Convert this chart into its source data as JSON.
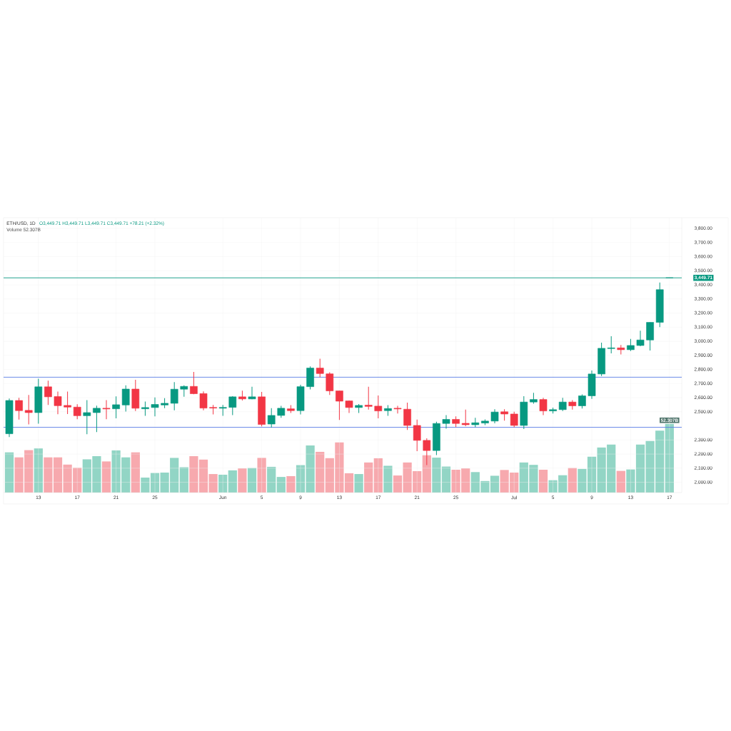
{
  "chart_data": [
    {
      "type": "bar",
      "categories": [
        null,
        null,
        null,
        null,
        null,
        null,
        null,
        null,
        null,
        null,
        null,
        null,
        null,
        null,
        null,
        null,
        null,
        null,
        null,
        null,
        null,
        null,
        null,
        null,
        null,
        null,
        null,
        null,
        null,
        null,
        null,
        null,
        null,
        null,
        null,
        null,
        null,
        null,
        null,
        null,
        null,
        null,
        null,
        null,
        null,
        null,
        null,
        null,
        null,
        null,
        null,
        null,
        null,
        null,
        null,
        null,
        null,
        null,
        null,
        null,
        null,
        null,
        null,
        null,
        null,
        null,
        null,
        null,
        null
      ],
      "values": [
        30.6,
        26.8,
        32.3,
        33.6,
        26.8,
        26.8,
        21.3,
        18.9,
        25.3,
        27.7,
        23.7,
        32.1,
        26.8,
        30.6,
        11.4,
        14.9,
        15.2,
        26.4,
        19.3,
        27.7,
        25.1,
        14.1,
        13.6,
        16.9,
        18.4,
        18.7,
        26.4,
        19.6,
        11.9,
        12.5,
        20.9,
        35.8,
        31.0,
        26.2,
        38.2,
        14.7,
        14.1,
        22.9,
        26.1,
        20.4,
        13.0,
        22.9,
        16.3,
        28.4,
        26.6,
        19.8,
        17.4,
        18.4,
        15.6,
        8.8,
        12.8,
        17.2,
        15.2,
        22.9,
        21.1,
        17.4,
        9.4,
        13.2,
        18.7,
        18.0,
        27.3,
        34.3,
        36.5,
        16.5,
        17.6,
        36.5,
        39.3,
        47.2,
        52.307
      ],
      "colors": [
        "#92d5c5",
        "#f7a9ae",
        "#f7a9ae",
        "#92d5c5",
        "#f7a9ae",
        "#f7a9ae",
        "#f7a9ae",
        "#f7a9ae",
        "#92d5c5",
        "#92d5c5",
        "#f7a9ae",
        "#92d5c5",
        "#92d5c5",
        "#f7a9ae",
        "#92d5c5",
        "#92d5c5",
        "#92d5c5",
        "#92d5c5",
        "#92d5c5",
        "#f7a9ae",
        "#f7a9ae",
        "#f7a9ae",
        "#92d5c5",
        "#92d5c5",
        "#f7a9ae",
        "#92d5c5",
        "#f7a9ae",
        "#92d5c5",
        "#92d5c5",
        "#f7a9ae",
        "#92d5c5",
        "#92d5c5",
        "#f7a9ae",
        "#f7a9ae",
        "#f7a9ae",
        "#f7a9ae",
        "#92d5c5",
        "#f7a9ae",
        "#f7a9ae",
        "#92d5c5",
        "#f7a9ae",
        "#f7a9ae",
        "#f7a9ae",
        "#f7a9ae",
        "#92d5c5",
        "#92d5c5",
        "#f7a9ae",
        "#f7a9ae",
        "#92d5c5",
        "#92d5c5",
        "#92d5c5",
        "#f7a9ae",
        "#f7a9ae",
        "#92d5c5",
        "#92d5c5",
        "#f7a9ae",
        "#92d5c5",
        "#92d5c5",
        "#f7a9ae",
        "#92d5c5",
        "#92d5c5",
        "#92d5c5",
        "#92d5c5",
        "#f7a9ae",
        "#92d5c5",
        "#92d5c5",
        "#92d5c5",
        "#92d5c5",
        "#92d5c5"
      ],
      "value_labels": [
        null,
        null,
        null,
        null,
        null,
        null,
        null,
        null,
        null,
        null,
        null,
        null,
        null,
        null,
        null,
        null,
        null,
        null,
        null,
        null,
        null,
        null,
        null,
        null,
        null,
        null,
        null,
        null,
        null,
        null,
        null,
        null,
        null,
        null,
        null,
        null,
        null,
        null,
        null,
        null,
        null,
        null,
        null,
        null,
        null,
        null,
        null,
        null,
        null,
        null,
        null,
        null,
        null,
        null,
        null,
        null,
        null,
        null,
        null,
        null,
        null,
        null,
        null,
        null,
        null,
        null,
        null,
        null,
        "52.307B"
      ]
    },
    {
      "type": "candlestick",
      "title": "ETH/USD, 1D",
      "subtitle": "O3,449.71 H3,449.71 L3,449.71 C3,449.71 +78.21 (+2.32%)",
      "annotations": [
        "Volume 52.307B"
      ],
      "categories": [
        null,
        null,
        null,
        "13",
        null,
        null,
        null,
        "17",
        null,
        null,
        null,
        "21",
        null,
        null,
        null,
        "25",
        null,
        null,
        null,
        null,
        null,
        null,
        "Jun",
        null,
        null,
        null,
        "5",
        null,
        null,
        null,
        "9",
        null,
        null,
        null,
        "13",
        null,
        null,
        null,
        "17",
        null,
        null,
        null,
        "21",
        null,
        null,
        null,
        "25",
        null,
        null,
        null,
        null,
        null,
        "Jul",
        null,
        null,
        null,
        "5",
        null,
        null,
        null,
        "9",
        null,
        null,
        null,
        "13",
        null,
        null,
        null,
        "17"
      ],
      "ohlc": [
        [
          2344,
          2594,
          2321,
          2580
        ],
        [
          2580,
          2599,
          2444,
          2508
        ],
        [
          2510,
          2619,
          2410,
          2494
        ],
        [
          2494,
          2734,
          2415,
          2677
        ],
        [
          2677,
          2720,
          2548,
          2606
        ],
        [
          2608,
          2643,
          2483,
          2543
        ],
        [
          2545,
          2643,
          2484,
          2533
        ],
        [
          2533,
          2553,
          2447,
          2472
        ],
        [
          2472,
          2582,
          2341,
          2494
        ],
        [
          2494,
          2543,
          2356,
          2525
        ],
        [
          2525,
          2582,
          2447,
          2520
        ],
        [
          2521,
          2609,
          2454,
          2550
        ],
        [
          2548,
          2688,
          2501,
          2661
        ],
        [
          2661,
          2727,
          2505,
          2525
        ],
        [
          2521,
          2572,
          2471,
          2530
        ],
        [
          2530,
          2601,
          2468,
          2552
        ],
        [
          2548,
          2597,
          2526,
          2560
        ],
        [
          2560,
          2710,
          2510,
          2660
        ],
        [
          2660,
          2688,
          2607,
          2680
        ],
        [
          2680,
          2783,
          2624,
          2628
        ],
        [
          2629,
          2645,
          2510,
          2526
        ],
        [
          2531,
          2548,
          2481,
          2526
        ],
        [
          2525,
          2548,
          2471,
          2531
        ],
        [
          2531,
          2611,
          2476,
          2606
        ],
        [
          2606,
          2650,
          2580,
          2591
        ],
        [
          2591,
          2677,
          2589,
          2606
        ],
        [
          2606,
          2641,
          2397,
          2410
        ],
        [
          2413,
          2526,
          2388,
          2474
        ],
        [
          2474,
          2542,
          2457,
          2525
        ],
        [
          2521,
          2547,
          2491,
          2508
        ],
        [
          2508,
          2692,
          2481,
          2678
        ],
        [
          2678,
          2822,
          2658,
          2810
        ],
        [
          2810,
          2876,
          2744,
          2771
        ],
        [
          2769,
          2780,
          2619,
          2648
        ],
        [
          2648,
          2648,
          2442,
          2575
        ],
        [
          2577,
          2580,
          2491,
          2530
        ],
        [
          2530,
          2555,
          2491,
          2545
        ],
        [
          2547,
          2678,
          2515,
          2538
        ],
        [
          2540,
          2616,
          2454,
          2506
        ],
        [
          2508,
          2547,
          2471,
          2523
        ],
        [
          2525,
          2542,
          2488,
          2520
        ],
        [
          2518,
          2565,
          2371,
          2403
        ],
        [
          2403,
          2444,
          2220,
          2297
        ],
        [
          2297,
          2312,
          2122,
          2225
        ],
        [
          2225,
          2429,
          2193,
          2417
        ],
        [
          2417,
          2476,
          2380,
          2446
        ],
        [
          2446,
          2468,
          2392,
          2417
        ],
        [
          2418,
          2515,
          2398,
          2408
        ],
        [
          2408,
          2457,
          2390,
          2422
        ],
        [
          2420,
          2446,
          2405,
          2434
        ],
        [
          2434,
          2518,
          2418,
          2498
        ],
        [
          2500,
          2518,
          2437,
          2484
        ],
        [
          2484,
          2500,
          2390,
          2403
        ],
        [
          2403,
          2611,
          2378,
          2569
        ],
        [
          2569,
          2634,
          2557,
          2587
        ],
        [
          2587,
          2599,
          2476,
          2506
        ],
        [
          2506,
          2530,
          2488,
          2515
        ],
        [
          2515,
          2599,
          2505,
          2569
        ],
        [
          2569,
          2582,
          2515,
          2542
        ],
        [
          2542,
          2623,
          2523,
          2613
        ],
        [
          2613,
          2793,
          2591,
          2768
        ],
        [
          2768,
          2990,
          2754,
          2950
        ],
        [
          2948,
          3036,
          2914,
          2953
        ],
        [
          2953,
          2974,
          2906,
          2940
        ],
        [
          2940,
          3016,
          2931,
          2970
        ],
        [
          2970,
          3075,
          2965,
          3009
        ],
        [
          3009,
          3134,
          2935,
          3134
        ],
        [
          3134,
          3417,
          3100,
          3366
        ],
        [
          3449.71,
          3449.71,
          3449.71,
          3449.71
        ]
      ],
      "colors": [
        "#089981",
        "#f23645",
        "#f23645",
        "#089981",
        "#f23645",
        "#f23645",
        "#f23645",
        "#f23645",
        "#089981",
        "#089981",
        "#f23645",
        "#089981",
        "#089981",
        "#f23645",
        "#089981",
        "#089981",
        "#089981",
        "#089981",
        "#089981",
        "#f23645",
        "#f23645",
        "#f23645",
        "#089981",
        "#089981",
        "#f23645",
        "#089981",
        "#f23645",
        "#089981",
        "#089981",
        "#f23645",
        "#089981",
        "#089981",
        "#f23645",
        "#f23645",
        "#f23645",
        "#f23645",
        "#089981",
        "#f23645",
        "#f23645",
        "#089981",
        "#f23645",
        "#f23645",
        "#f23645",
        "#f23645",
        "#089981",
        "#089981",
        "#f23645",
        "#f23645",
        "#089981",
        "#089981",
        "#089981",
        "#f23645",
        "#f23645",
        "#089981",
        "#089981",
        "#f23645",
        "#089981",
        "#089981",
        "#f23645",
        "#089981",
        "#089981",
        "#089981",
        "#089981",
        "#f23645",
        "#089981",
        "#089981",
        "#089981",
        "#089981",
        "#089981"
      ],
      "ylim": [
        1927,
        3876
      ],
      "yticks": [
        {
          "value": 2000,
          "label": "2,000.00"
        },
        {
          "value": 2100,
          "label": "2,100.00"
        },
        {
          "value": 2200,
          "label": "2,200.00"
        },
        {
          "value": 2300,
          "label": "2,300.00"
        },
        {
          "value": 2500,
          "label": "2,500.00"
        },
        {
          "value": 2600,
          "label": "2,600.00"
        },
        {
          "value": 2700,
          "label": "2,700.00"
        },
        {
          "value": 2800,
          "label": "2,800.00"
        },
        {
          "value": 2900,
          "label": "2,900.00"
        },
        {
          "value": 3000,
          "label": "3,000.00"
        },
        {
          "value": 3100,
          "label": "3,100.00"
        },
        {
          "value": 3200,
          "label": "3,200.00"
        },
        {
          "value": 3300,
          "label": "3,300.00"
        },
        {
          "value": 3400,
          "label": "3,400.00"
        },
        {
          "value": 3500,
          "label": "3,500.00"
        },
        {
          "value": 3600,
          "label": "3,600.00"
        },
        {
          "value": 3700,
          "label": "3,700.00"
        },
        {
          "value": 3800,
          "label": "3,800.00"
        }
      ],
      "ref_lines": [
        {
          "axis": "y",
          "value": 2745,
          "color": "#5b7ee5"
        },
        {
          "axis": "y",
          "value": 2390,
          "color": "#5b7ee5"
        },
        {
          "axis": "y",
          "value": 3449.71,
          "label": "3,449.71",
          "color": "#089981"
        }
      ],
      "grid": true
    }
  ]
}
